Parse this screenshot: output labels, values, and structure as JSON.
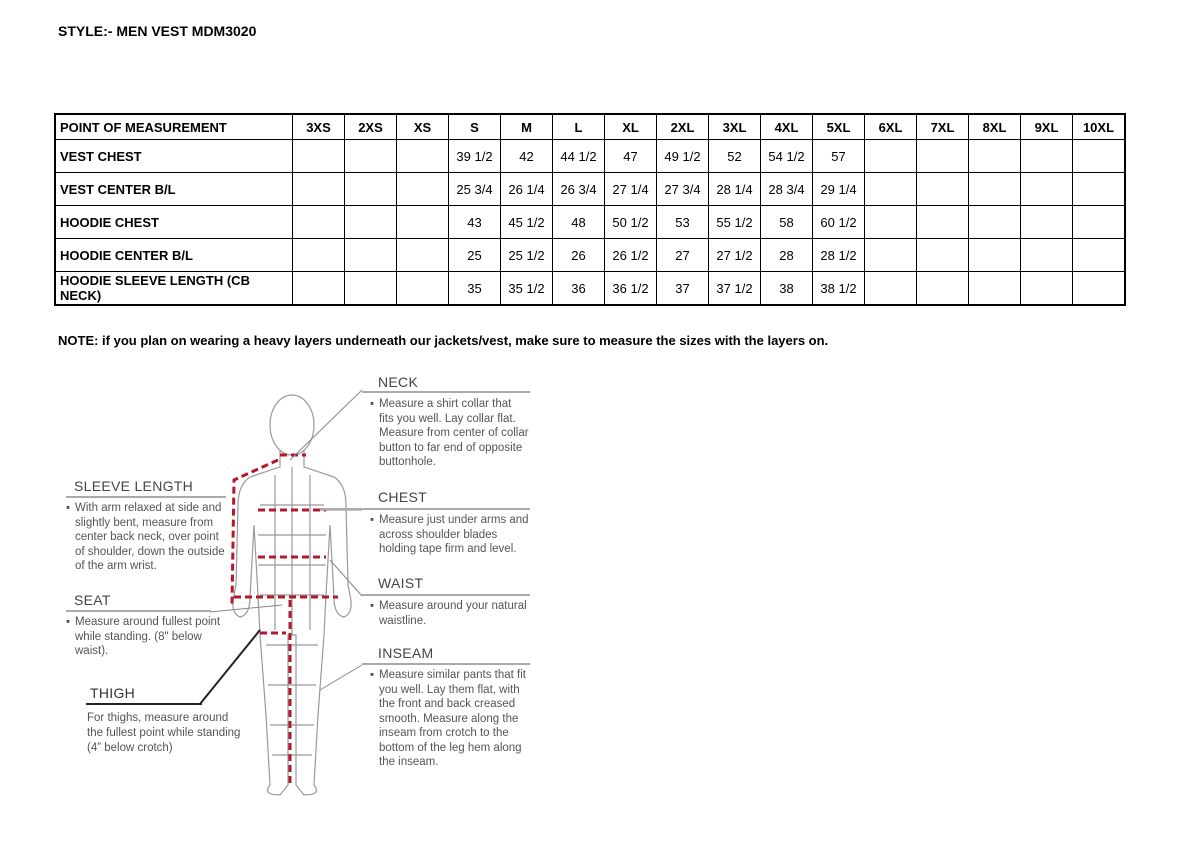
{
  "title": "STYLE:- MEN VEST  MDM3020",
  "table": {
    "headers": [
      "POINT OF MEASUREMENT",
      "3XS",
      "2XS",
      "XS",
      "S",
      "M",
      "L",
      "XL",
      "2XL",
      "3XL",
      "4XL",
      "5XL",
      "6XL",
      "7XL",
      "8XL",
      "9XL",
      "10XL"
    ],
    "rows": [
      [
        "VEST CHEST",
        "",
        "",
        "",
        "39 1/2",
        "42",
        "44 1/2",
        "47",
        "49 1/2",
        "52",
        "54 1/2",
        "57",
        "",
        "",
        "",
        "",
        ""
      ],
      [
        "VEST CENTER B/L",
        "",
        "",
        "",
        "25 3/4",
        "26 1/4",
        "26 3/4",
        "27 1/4",
        "27 3/4",
        "28 1/4",
        "28 3/4",
        "29 1/4",
        "",
        "",
        "",
        "",
        ""
      ],
      [
        "HOODIE CHEST",
        "",
        "",
        "",
        "43",
        "45 1/2",
        "48",
        "50 1/2",
        "53",
        "55 1/2",
        "58",
        "60 1/2",
        "",
        "",
        "",
        "",
        ""
      ],
      [
        "HOODIE CENTER B/L",
        "",
        "",
        "",
        "25",
        "25 1/2",
        "26",
        "26 1/2",
        "27",
        "27 1/2",
        "28",
        "28 1/2",
        "",
        "",
        "",
        "",
        ""
      ],
      [
        "HOODIE SLEEVE LENGTH (CB NECK)",
        "",
        "",
        "",
        "35",
        "35 1/2",
        "36",
        "36 1/2",
        "37",
        "37 1/2",
        "38",
        "38 1/2",
        "",
        "",
        "",
        "",
        ""
      ]
    ]
  },
  "note": "NOTE: if you plan on wearing a heavy layers underneath our jackets/vest, make sure to measure the sizes with the layers on.",
  "guide": {
    "neck": {
      "label": "NECK",
      "text": "Measure a shirt collar that fits you well. Lay collar flat. Measure from center of collar button to far end of opposite buttonhole."
    },
    "chest": {
      "label": "CHEST",
      "text": "Measure just under arms and across shoulder blades holding tape firm and level."
    },
    "waist": {
      "label": "WAIST",
      "text": "Measure around your natural waistline."
    },
    "inseam": {
      "label": "INSEAM",
      "text": "Measure similar pants that fit you well. Lay them flat, with the front and back creased smooth. Measure along the inseam from crotch to the bottom of the leg hem along the inseam."
    },
    "sleeve": {
      "label": "SLEEVE LENGTH",
      "text": "With arm relaxed at side and slightly bent, measure from center back neck, over point of shoulder, down the outside of the arm wrist."
    },
    "seat": {
      "label": "SEAT",
      "text": "Measure around fullest point while standing. (8\" below waist)."
    },
    "thigh": {
      "label": "THIGH",
      "text": "For thighs, measure around the fullest point while standing (4” below crotch)"
    }
  },
  "colors": {
    "measure_line": "#b5172b"
  }
}
